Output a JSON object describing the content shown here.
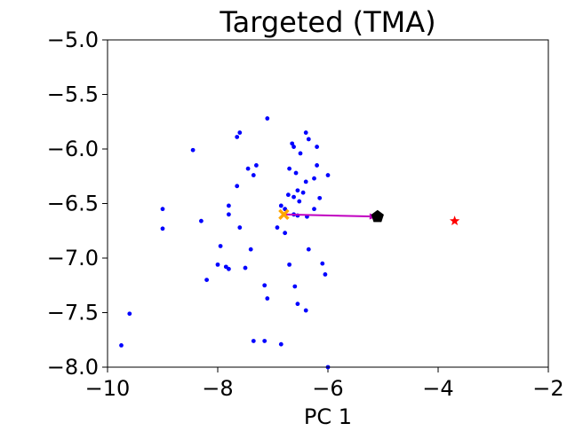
{
  "chart_data": {
    "type": "scatter",
    "title": "Targeted (TMA)",
    "xlabel": "PC 1",
    "ylabel": "",
    "xlim": [
      -10,
      -2
    ],
    "ylim": [
      -8.0,
      -5.0
    ],
    "x_ticks": [
      -10,
      -8,
      -6,
      -4,
      -2
    ],
    "x_tick_labels": [
      "−10",
      "−8",
      "−6",
      "−4",
      "−2"
    ],
    "y_ticks": [
      -5.0,
      -5.5,
      -6.0,
      -6.5,
      -7.0,
      -7.5,
      -8.0
    ],
    "y_tick_labels": [
      "−5.0",
      "−5.5",
      "−6.0",
      "−6.5",
      "−7.0",
      "−7.5",
      "−8.0"
    ],
    "grid": false,
    "points": {
      "color": "#0000ff",
      "marker": "dot",
      "x": [
        -7.1,
        -6.4,
        -7.6,
        -7.65,
        -6.35,
        -6.65,
        -6.2,
        -6.62,
        -6.5,
        -8.45,
        -7.3,
        -7.45,
        -6.7,
        -6.2,
        -6.58,
        -6.0,
        -6.25,
        -7.65,
        -7.35,
        -6.4,
        -6.55,
        -6.62,
        -6.72,
        -6.45,
        -6.52,
        -7.8,
        -6.15,
        -6.78,
        -6.25,
        -6.85,
        -9.0,
        -7.8,
        -6.62,
        -6.38,
        -6.55,
        -8.3,
        -7.6,
        -6.92,
        -9.0,
        -6.78,
        -7.95,
        -7.4,
        -6.35,
        -6.7,
        -6.1,
        -7.5,
        -8.0,
        -7.85,
        -7.8,
        -6.05,
        -8.2,
        -7.15,
        -6.6,
        -7.1,
        -6.55,
        -6.4,
        -9.6,
        -7.35,
        -7.15,
        -6.85,
        -9.75,
        -6.0
      ],
      "y": [
        -5.72,
        -5.85,
        -5.85,
        -5.89,
        -5.91,
        -5.95,
        -5.98,
        -5.98,
        -6.04,
        -6.01,
        -6.15,
        -6.18,
        -6.18,
        -6.15,
        -6.22,
        -6.24,
        -6.27,
        -6.34,
        -6.24,
        -6.3,
        -6.38,
        -6.44,
        -6.42,
        -6.4,
        -6.48,
        -6.52,
        -6.45,
        -6.55,
        -6.55,
        -6.52,
        -6.55,
        -6.6,
        -6.6,
        -6.62,
        -6.61,
        -6.66,
        -6.72,
        -6.72,
        -6.73,
        -6.77,
        -6.89,
        -6.92,
        -6.92,
        -7.06,
        -7.05,
        -7.09,
        -7.06,
        -7.08,
        -7.1,
        -7.15,
        -7.2,
        -7.25,
        -7.26,
        -7.37,
        -7.42,
        -7.48,
        -7.51,
        -7.76,
        -7.76,
        -7.79,
        -7.8,
        -8.0
      ]
    },
    "start_marker": {
      "x": -6.8,
      "y": -6.6,
      "color": "#ffa500",
      "marker": "x"
    },
    "end_marker": {
      "x": -5.1,
      "y": -6.62,
      "color": "#000000",
      "marker": "pentagon"
    },
    "target_marker": {
      "x": -3.7,
      "y": -6.66,
      "color": "#ff0000",
      "marker": "star"
    },
    "arrow": {
      "x0": -6.8,
      "y0": -6.6,
      "x1": -5.1,
      "y1": -6.62,
      "color": "#c000c0"
    }
  }
}
